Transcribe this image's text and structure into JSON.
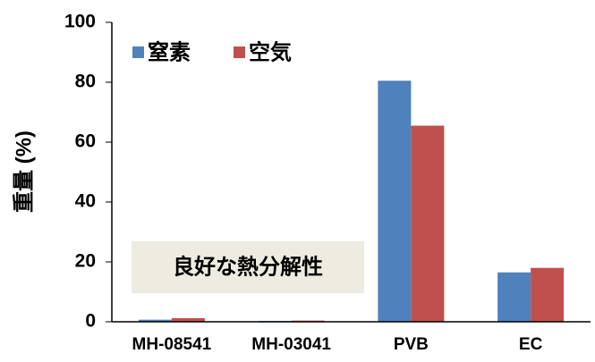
{
  "chart_data": {
    "type": "bar",
    "ylabel": "重量 (%)",
    "categories": [
      "MH-08541",
      "MH-03041",
      "PVB",
      "EC"
    ],
    "series": [
      {
        "name": "窒素",
        "color": "#4f81bd",
        "values": [
          0.7,
          0.3,
          80.5,
          16.5
        ]
      },
      {
        "name": "空気",
        "color": "#c0504d",
        "values": [
          1.2,
          0.4,
          65.5,
          18
        ]
      }
    ],
    "ylim": [
      0,
      100
    ],
    "yticks": [
      0,
      20,
      40,
      60,
      80,
      100
    ],
    "grid": false,
    "legend": "top-left",
    "annotation": "良好な熱分解性"
  }
}
